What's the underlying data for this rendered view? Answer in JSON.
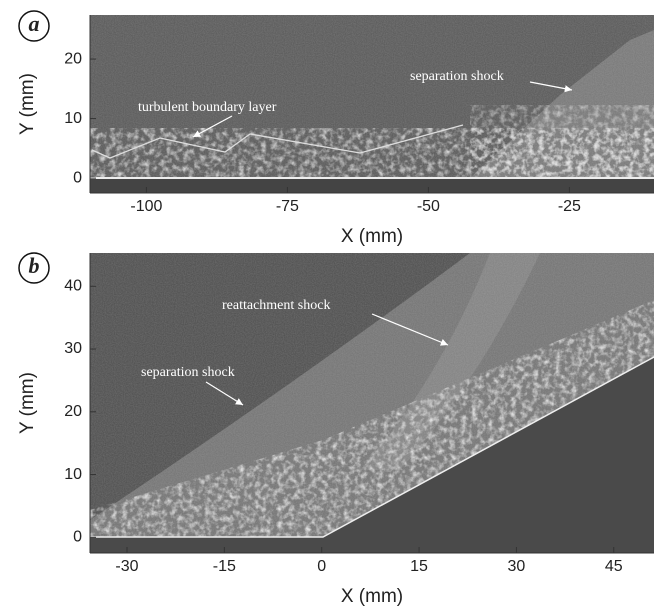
{
  "chart_data": [
    {
      "type": "image",
      "panel_label": "a",
      "xlabel": "X (mm)",
      "ylabel": "Y (mm)",
      "xlim": [
        -110,
        -10
      ],
      "ylim": [
        -2.5,
        27.4
      ],
      "xticks": [
        -100,
        -75,
        -50,
        -25
      ],
      "yticks": [
        0,
        10,
        20
      ],
      "annotations": [
        "turbulent boundary layer",
        "separation shock"
      ]
    },
    {
      "type": "image",
      "panel_label": "b",
      "xlabel": "X (mm)",
      "ylabel": "Y (mm)",
      "xlim": [
        -35.7,
        51.2
      ],
      "ylim": [
        -2.5,
        45.3
      ],
      "xticks": [
        -30,
        -15,
        0,
        15,
        30,
        45
      ],
      "yticks": [
        0,
        10,
        20,
        30,
        40
      ],
      "annotations": [
        "reattachment shock",
        "separation shock"
      ]
    }
  ]
}
